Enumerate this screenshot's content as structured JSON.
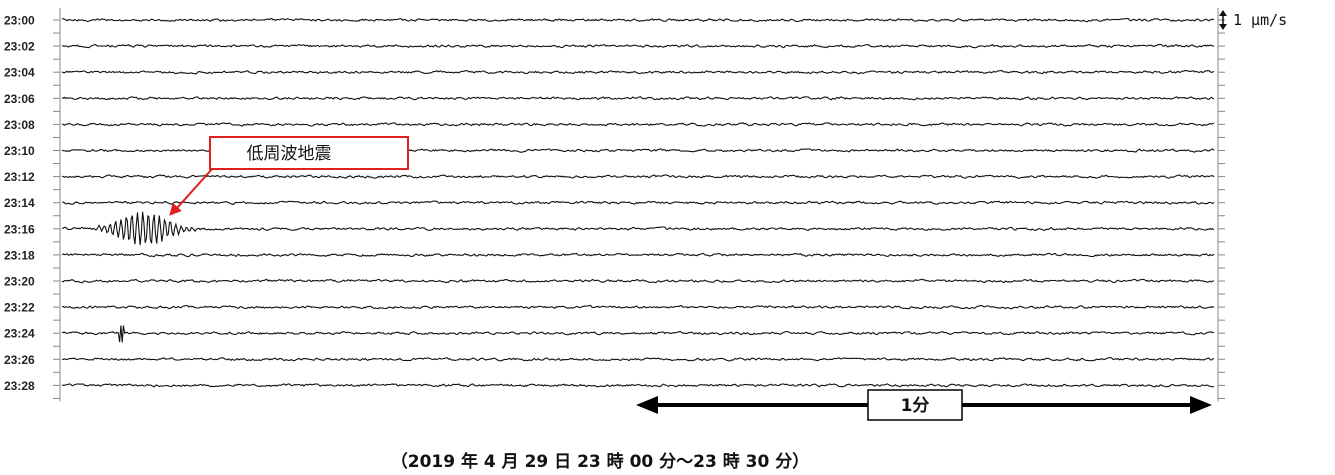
{
  "chart_data": {
    "type": "line",
    "title": "",
    "xlabel": "",
    "ylabel": "",
    "rows": [
      "23:00",
      "23:02",
      "23:04",
      "23:06",
      "23:08",
      "23:10",
      "23:12",
      "23:14",
      "23:16",
      "23:18",
      "23:20",
      "23:22",
      "23:24",
      "23:26",
      "23:28"
    ],
    "row_duration_min": 2,
    "scale_label": "1 μm/s",
    "scale_value_um_per_s": 1,
    "duration_bar_label": "1分",
    "duration_bar_minutes": 1,
    "annotation": {
      "text": "低周波地震",
      "row": "23:16",
      "time_offset_s": 7,
      "color": "#e02020"
    },
    "events": [
      {
        "row": "23:16",
        "start_s": 3,
        "end_s": 17,
        "type": "low-frequency earthquake"
      },
      {
        "row": "23:24",
        "start_s": 6,
        "end_s": 6.3,
        "type": "spike"
      }
    ],
    "caption": "（2019 年 4 月 29 日 23 時 00 分〜23 時 30 分）",
    "trace_color": "#111111",
    "grid": false
  }
}
